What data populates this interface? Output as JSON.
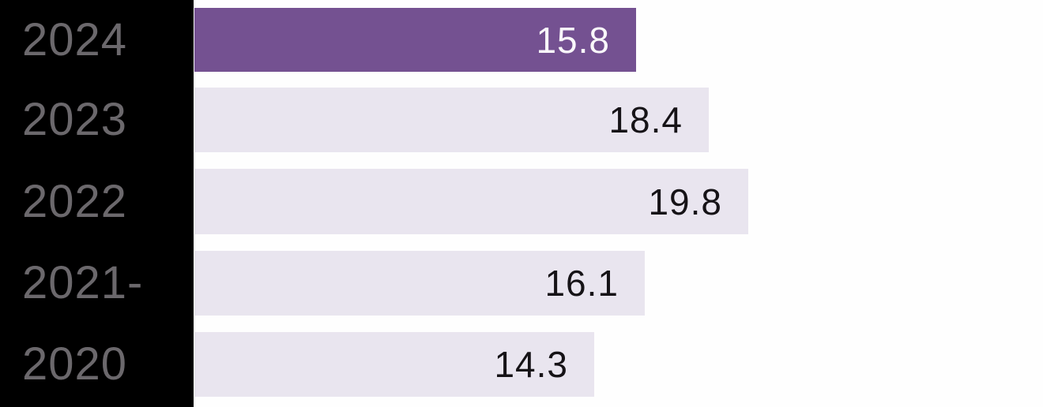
{
  "colors": {
    "panel_bg": "#000000",
    "page_bg": "#fefefe",
    "bar_highlight": "#745191",
    "bar_default": "#e9e5ef",
    "value_on_highlight": "#f9f7fa",
    "value_on_default": "#161317",
    "year_label": "#6b686c"
  },
  "chart_data": {
    "type": "bar",
    "orientation": "horizontal",
    "title": "",
    "xlabel": "",
    "ylabel": "",
    "grid": false,
    "legend": null,
    "categories": [
      "2024",
      "2023",
      "2022",
      "2021-",
      "2020"
    ],
    "values": [
      15.8,
      18.4,
      19.8,
      16.1,
      14.3
    ],
    "value_labels": [
      "15.8",
      "18.4",
      "19.8",
      "16.1",
      "14.3"
    ],
    "highlighted_category": "2024",
    "xlim": [
      0,
      30
    ]
  }
}
